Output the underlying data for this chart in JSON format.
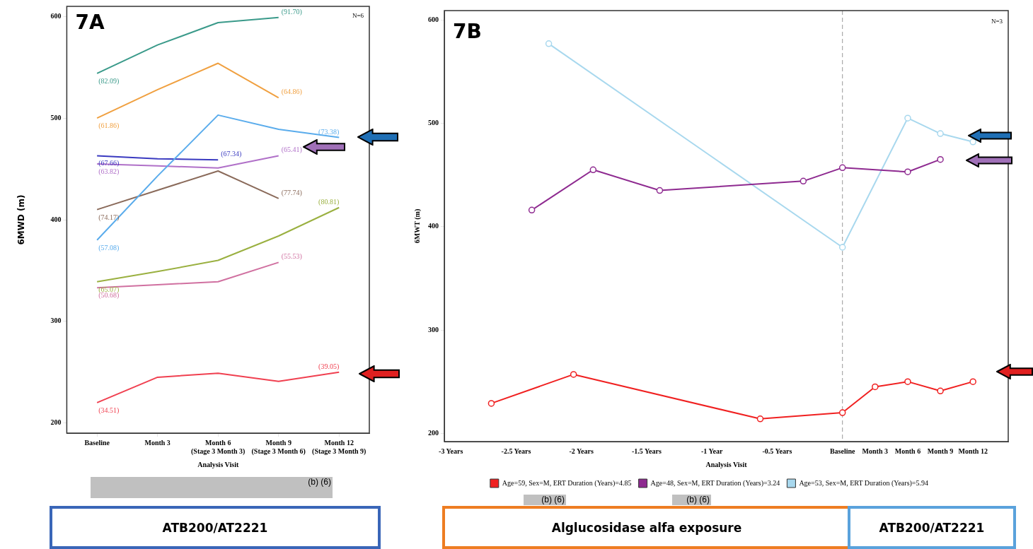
{
  "chart_data": [
    {
      "type": "line",
      "title": "7A",
      "xlabel": "Analysis Visit",
      "ylabel": "6MWD (m)",
      "categories": [
        "Baseline",
        "Month 3",
        "Month 6 (Stage 3 Month 3)",
        "Month 9 (Stage 3 Month 6)",
        "Month 12 (Stage 3 Month 9)"
      ],
      "ylim": [
        190,
        610
      ],
      "yticks": [
        200,
        300,
        400,
        500,
        600
      ],
      "grid": false,
      "legend": false,
      "marker": "none",
      "line_style": "solid",
      "series": [
        {
          "color": "#3a9a8a",
          "values": [
            544,
            572,
            594,
            599,
            null
          ]
        },
        {
          "color": "#f0a040",
          "values": [
            500,
            528,
            554,
            520,
            null
          ]
        },
        {
          "color": "#5aacec",
          "values": [
            380,
            443,
            503,
            489,
            481
          ]
        },
        {
          "color": "#3a3ac0",
          "values": [
            463,
            460,
            459,
            null,
            null
          ]
        },
        {
          "color": "#b070c8",
          "values": [
            455,
            453,
            451,
            463,
            null
          ]
        },
        {
          "color": "#8a6a5a",
          "values": [
            410,
            429,
            448,
            421,
            null
          ]
        },
        {
          "color": "#9ab040",
          "values": [
            339,
            349,
            360,
            384,
            412
          ]
        },
        {
          "color": "#d070a0",
          "values": [
            333,
            336,
            339,
            358,
            null
          ]
        },
        {
          "color": "#f04050",
          "values": [
            220,
            245,
            249,
            241,
            250
          ]
        }
      ],
      "annotations": [
        "N=6",
        {
          "text": "(82.09)",
          "x": "Baseline",
          "y": 544
        },
        {
          "text": "(91.70)",
          "x": "Month 9 (Stage 3 Month 6)",
          "y": 599
        },
        {
          "text": "(61.86)",
          "x": "Baseline",
          "y": 500
        },
        {
          "text": "(64.86)",
          "x": "Month 9 (Stage 3 Month 6)",
          "y": 520
        },
        {
          "text": "(57.08)",
          "x": "Baseline",
          "y": 380
        },
        {
          "text": "(73.38)",
          "x": "Month 12 (Stage 3 Month 9)",
          "y": 481
        },
        {
          "text": "(67.66)",
          "x": "Baseline",
          "y": 463
        },
        {
          "text": "(67.34)",
          "x": "Month 6 (Stage 3 Month 3)",
          "y": 459
        },
        {
          "text": "(63.82)",
          "x": "Baseline",
          "y": 455
        },
        {
          "text": "(65.41)",
          "x": "Month 9 (Stage 3 Month 6)",
          "y": 463
        },
        {
          "text": "(74.17)",
          "x": "Baseline",
          "y": 410
        },
        {
          "text": "(77.74)",
          "x": "Month 9 (Stage 3 Month 6)",
          "y": 421
        },
        {
          "text": "(65.07)",
          "x": "Baseline",
          "y": 339
        },
        {
          "text": "(80.81)",
          "x": "Month 12 (Stage 3 Month 9)",
          "y": 412
        },
        {
          "text": "(50.68)",
          "x": "Baseline",
          "y": 333
        },
        {
          "text": "(55.53)",
          "x": "Month 9 (Stage 3 Month 6)",
          "y": 358
        },
        {
          "text": "(34.51)",
          "x": "Baseline",
          "y": 220
        },
        {
          "text": "(39.05)",
          "x": "Month 12 (Stage 3 Month 9)",
          "y": 250
        },
        "(b) (6)",
        "ATB200/AT2221"
      ]
    },
    {
      "type": "line",
      "title": "7B",
      "xlabel": "Analysis Visit",
      "ylabel": "6MWT (m)",
      "xlim": [
        -3.05,
        1.27
      ],
      "xticks": [
        {
          "value": -3,
          "label": "-3 Years"
        },
        {
          "value": -2.5,
          "label": "-2.5 Years"
        },
        {
          "value": -2,
          "label": "-2 Years"
        },
        {
          "value": -1.5,
          "label": "-1.5 Years"
        },
        {
          "value": -1,
          "label": "-1 Year"
        },
        {
          "value": -0.5,
          "label": "-0.5 Years"
        },
        {
          "value": 0,
          "label": "Baseline"
        },
        {
          "value": 0.25,
          "label": "Month 3"
        },
        {
          "value": 0.5,
          "label": "Month 6"
        },
        {
          "value": 0.75,
          "label": "Month 9"
        },
        {
          "value": 1,
          "label": "Month 12"
        }
      ],
      "ylim": [
        192,
        609
      ],
      "yticks": [
        200,
        300,
        400,
        500,
        600
      ],
      "grid": false,
      "legend": "bottom",
      "marker": "circle",
      "line_style": "solid",
      "series": [
        {
          "name": "Age=59, Sex=M, ERT Duration (Years)=4.85",
          "color": "#f02020",
          "x": [
            -2.69,
            -2.06,
            -0.63,
            0,
            0.25,
            0.5,
            0.75,
            1
          ],
          "values": [
            229,
            257,
            214,
            220,
            245,
            250,
            241,
            250
          ]
        },
        {
          "name": "Age=48, Sex=M, ERT Duration (Years)=3.24",
          "color": "#8e2a90",
          "x": [
            -2.38,
            -1.91,
            -1.4,
            -0.3,
            0,
            0.5,
            0.75
          ],
          "values": [
            416,
            455,
            435,
            444,
            457,
            453,
            465
          ]
        },
        {
          "name": "Age=53, Sex=M, ERT Duration (Years)=5.94",
          "color": "#a8d8ee",
          "x": [
            -2.25,
            0,
            0.5,
            0.75,
            1
          ],
          "values": [
            577,
            380,
            505,
            490,
            482
          ]
        }
      ],
      "ref_lines": [
        {
          "axis": "x",
          "value": 0,
          "color": "#999999",
          "line_style": "dashed"
        }
      ],
      "annotations": [
        "N=3",
        "(b) (6)",
        "(b) (6)",
        "Alglucosidase alfa exposure",
        "ATB200/AT2221"
      ]
    }
  ]
}
